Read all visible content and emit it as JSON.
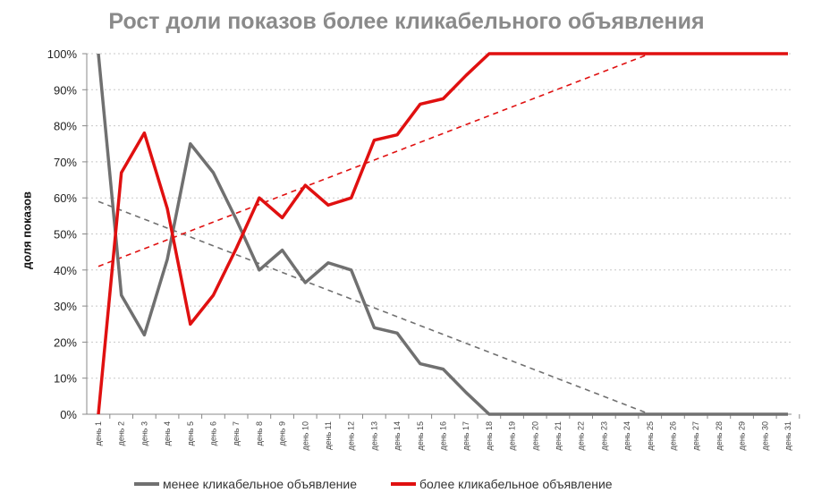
{
  "chart_data": {
    "type": "line",
    "title": "Рост доли показов более кликабельного объявления",
    "xlabel": "",
    "ylabel": "доля показов",
    "ylim": [
      0,
      100
    ],
    "yticks": [
      "0%",
      "10%",
      "20%",
      "30%",
      "40%",
      "50%",
      "60%",
      "70%",
      "80%",
      "90%",
      "100%"
    ],
    "categories": [
      "день 1",
      "день 2",
      "день 3",
      "день 4",
      "день 5",
      "день 6",
      "день 7",
      "день 8",
      "день 9",
      "день 10",
      "день 11",
      "день 12",
      "день 13",
      "день 14",
      "день 15",
      "день 16",
      "день 17",
      "день 18",
      "день 19",
      "день 20",
      "день 21",
      "день 22",
      "день 23",
      "день 24",
      "день 25",
      "день 26",
      "день 27",
      "день 28",
      "день 29",
      "день 30",
      "день 31"
    ],
    "grid": true,
    "legend_position": "bottom",
    "series": [
      {
        "name": "менее кликабельное объявление",
        "color": "#707070",
        "values": [
          100,
          33,
          22,
          43,
          75,
          67,
          54,
          40,
          45.5,
          36.5,
          42,
          40,
          24,
          22.5,
          14,
          12.5,
          6,
          0,
          0,
          0,
          0,
          0,
          0,
          0,
          0,
          0,
          0,
          0,
          0,
          0,
          0
        ],
        "trend": {
          "from": [
            1,
            59
          ],
          "to": [
            25,
            0
          ]
        }
      },
      {
        "name": "более кликабельное объявление",
        "color": "#e01010",
        "values": [
          0,
          67,
          78,
          57,
          25,
          33,
          46,
          60,
          54.5,
          63.5,
          58,
          60,
          76,
          77.5,
          86,
          87.5,
          94,
          100,
          100,
          100,
          100,
          100,
          100,
          100,
          100,
          100,
          100,
          100,
          100,
          100,
          100
        ],
        "trend": {
          "from": [
            1,
            41
          ],
          "to": [
            25,
            100
          ]
        }
      }
    ]
  }
}
